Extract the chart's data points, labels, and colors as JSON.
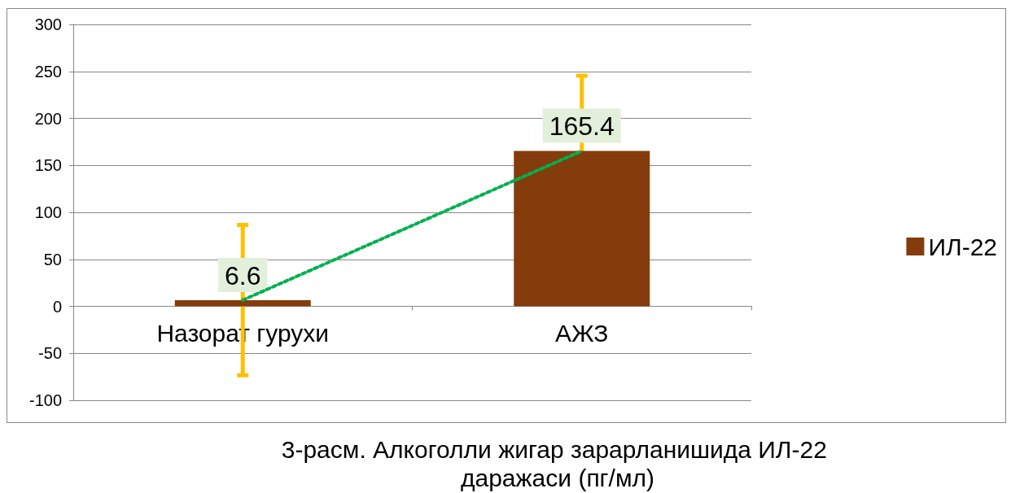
{
  "chart_data": {
    "type": "bar",
    "title": "3-расм. Алкоголли жигар зарарланишида ИЛ-22 даражаси (пг/мл)",
    "categories": [
      "Назорат гурухи",
      "АЖЗ"
    ],
    "series": [
      {
        "name": "ИЛ-22",
        "color": "#843c0c",
        "values": [
          6.6,
          165.4
        ],
        "errors": [
          80,
          80
        ],
        "value_labels": [
          "6.6",
          "165.4"
        ]
      },
      {
        "type": "line",
        "color": "#00b050",
        "values": [
          6.6,
          165.4
        ],
        "line_style": "dotted",
        "marker": "none"
      }
    ],
    "ylim": [
      -100,
      300
    ],
    "yticks": [
      -100,
      -50,
      0,
      50,
      100,
      150,
      200,
      250,
      300
    ],
    "grid": "y",
    "legend": "right"
  }
}
